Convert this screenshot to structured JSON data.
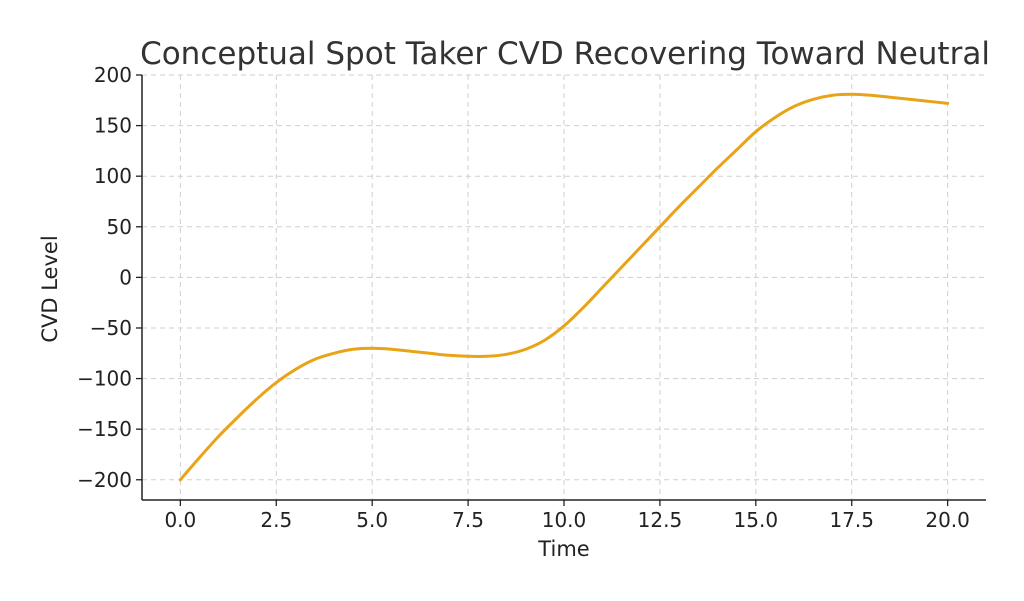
{
  "chart_data": {
    "type": "line",
    "title": "Conceptual Spot Taker CVD Recovering Toward Neutral",
    "xlabel": "Time",
    "ylabel": "CVD Level",
    "xlim": [
      -1,
      21
    ],
    "ylim": [
      -220,
      200
    ],
    "xticks": [
      0,
      2.5,
      5,
      7.5,
      10,
      12.5,
      15,
      17.5,
      20
    ],
    "xtick_labels": [
      "0.0",
      "2.5",
      "5.0",
      "7.5",
      "10.0",
      "12.5",
      "15.0",
      "17.5",
      "20.0"
    ],
    "yticks": [
      -200,
      -150,
      -100,
      -50,
      0,
      50,
      100,
      150,
      200
    ],
    "ytick_labels": [
      "−200",
      "−150",
      "−100",
      "−50",
      "0",
      "50",
      "100",
      "150",
      "200"
    ],
    "grid": true,
    "colors": {
      "line": "#E8A317"
    },
    "series": [
      {
        "x": [
          0,
          0.5,
          1,
          1.5,
          2,
          2.5,
          3,
          3.5,
          4,
          4.5,
          5,
          5.5,
          6,
          6.5,
          7,
          7.5,
          8,
          8.5,
          9,
          9.5,
          10,
          10.5,
          11,
          11.5,
          12,
          12.5,
          13,
          13.5,
          14,
          14.5,
          15,
          15.5,
          16,
          16.5,
          17,
          17.5,
          18,
          18.5,
          19,
          19.5,
          20
        ],
        "values": [
          -200,
          -178,
          -157,
          -138,
          -120,
          -104,
          -91,
          -81,
          -75,
          -71,
          -70,
          -71,
          -73,
          -75,
          -77,
          -78,
          -78,
          -76,
          -71,
          -62,
          -48,
          -30,
          -10,
          10,
          30,
          50,
          70,
          89,
          108,
          126,
          144,
          158,
          169,
          176,
          180,
          181,
          180,
          178,
          176,
          174,
          172
        ]
      }
    ]
  }
}
